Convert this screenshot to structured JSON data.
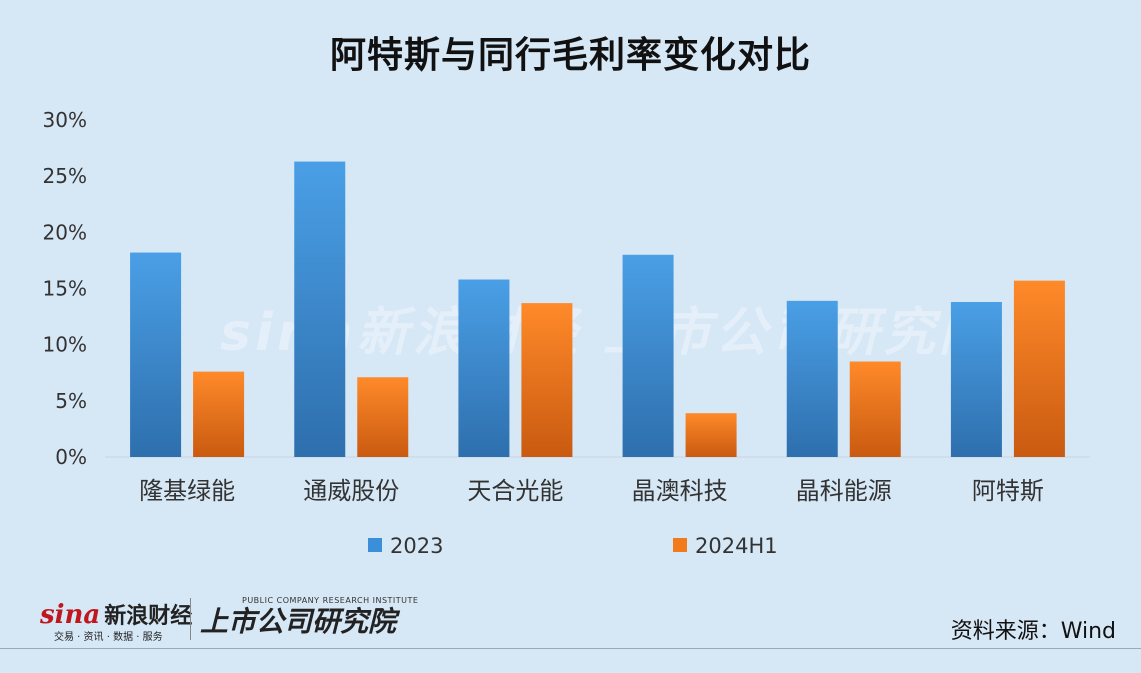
{
  "title": "阿特斯与同行毛利率变化对比",
  "source": "资料来源：Wind",
  "watermark": "sina新浪财经 上市公司研究院",
  "logo": {
    "brand": "sina",
    "brand_cn": "新浪财经",
    "sub": "交易 · 资讯 · 数据 · 服务",
    "institute_en": "PUBLIC COMPANY RESEARCH INSTITUTE",
    "institute_cn": "上市公司研究院"
  },
  "colors": {
    "background": "#d6e7f6",
    "series_2023": "#3b8fd9",
    "series_2024H1": "#f07a1c"
  },
  "chart_data": {
    "type": "bar",
    "title": "阿特斯与同行毛利率变化对比",
    "categories": [
      "隆基绿能",
      "通威股份",
      "天合光能",
      "晶澳科技",
      "晶科能源",
      "阿特斯"
    ],
    "series": [
      {
        "name": "2023",
        "values": [
          18.2,
          26.3,
          15.8,
          18.0,
          13.9,
          13.8
        ]
      },
      {
        "name": "2024H1",
        "values": [
          7.6,
          7.1,
          13.7,
          3.9,
          8.5,
          15.7
        ]
      }
    ],
    "yticks": [
      "0%",
      "5%",
      "10%",
      "15%",
      "20%",
      "25%",
      "30%"
    ],
    "ylim": [
      0,
      30
    ],
    "grid": false,
    "legend_position": "bottom"
  }
}
